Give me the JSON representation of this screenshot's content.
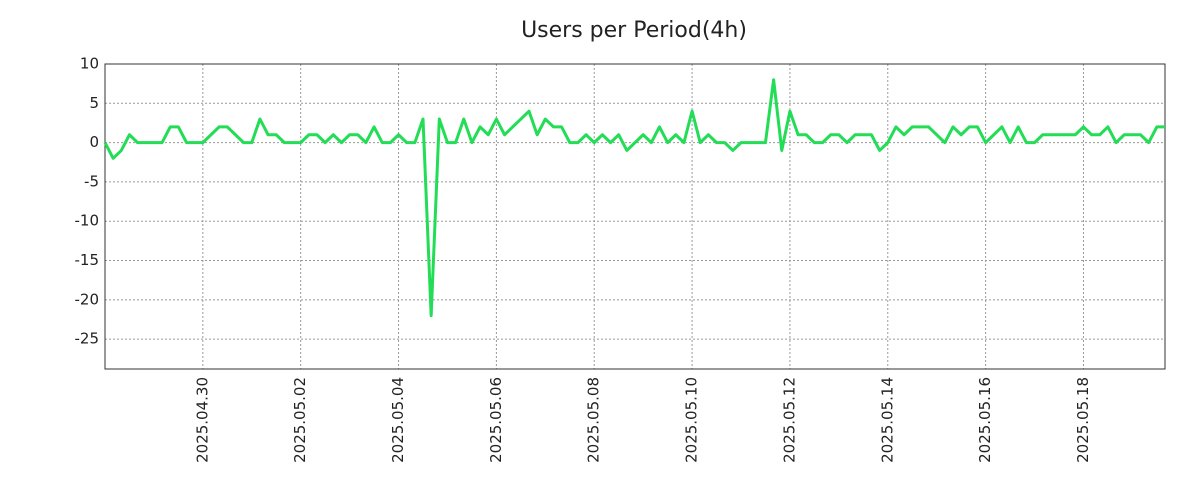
{
  "chart_data": {
    "type": "line",
    "title": "Users per Period(4h)",
    "series": [
      {
        "color": "#22dd55",
        "values": [
          0,
          -2,
          -1,
          1,
          0,
          0,
          0,
          0,
          2,
          2,
          0,
          0,
          0,
          1,
          2,
          2,
          1,
          0,
          0,
          3,
          1,
          1,
          0,
          0,
          0,
          1,
          1,
          0,
          1,
          0,
          1,
          1,
          0,
          2,
          0,
          0,
          1,
          0,
          0,
          3,
          -22,
          3,
          0,
          0,
          3,
          0,
          2,
          1,
          3,
          1,
          2,
          3,
          4,
          1,
          3,
          2,
          2,
          0,
          0,
          1,
          0,
          1,
          0,
          1,
          -1,
          0,
          1,
          0,
          2,
          0,
          1,
          0,
          4,
          0,
          1,
          0,
          0,
          -1,
          0,
          0,
          0,
          0,
          8,
          -1,
          4,
          1,
          1,
          0,
          0,
          1,
          1,
          0,
          1,
          1,
          1,
          -1,
          0,
          2,
          1,
          2,
          2,
          2,
          1,
          0,
          2,
          1,
          2,
          2,
          0,
          1,
          2,
          0,
          2,
          0,
          0,
          1,
          1,
          1,
          1,
          1,
          2,
          1,
          1,
          2,
          0,
          1,
          1,
          1,
          0,
          2,
          2
        ]
      }
    ],
    "xlim": [
      0,
      130
    ],
    "xticks": [
      {
        "value": 12,
        "label": "2025.04.30"
      },
      {
        "value": 24,
        "label": "2025.05.02"
      },
      {
        "value": 36,
        "label": "2025.05.04"
      },
      {
        "value": 48,
        "label": "2025.05.06"
      },
      {
        "value": 60,
        "label": "2025.05.08"
      },
      {
        "value": 72,
        "label": "2025.05.10"
      },
      {
        "value": 84,
        "label": "2025.05.12"
      },
      {
        "value": 96,
        "label": "2025.05.14"
      },
      {
        "value": 108,
        "label": "2025.05.16"
      },
      {
        "value": 120,
        "label": "2025.05.18"
      }
    ],
    "ylim": [
      -28.8,
      10
    ],
    "yticks": [
      10,
      5,
      0,
      -5,
      -10,
      -15,
      -20,
      -25
    ],
    "grid": true
  }
}
